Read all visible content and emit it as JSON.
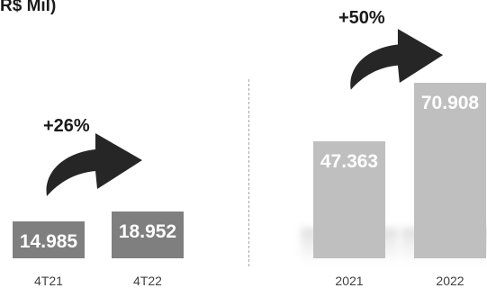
{
  "header": {
    "unit_label": "R$ Mil)"
  },
  "chart_data": [
    {
      "type": "bar",
      "categories": [
        "4T21",
        "4T22"
      ],
      "values": [
        14985,
        18952
      ],
      "value_labels": [
        "14.985",
        "18.952"
      ],
      "growth_label": "+26%",
      "colors": [
        "#7f7f7f",
        "#7f7f7f"
      ]
    },
    {
      "type": "bar",
      "categories": [
        "2021",
        "2022"
      ],
      "values": [
        47363,
        70908
      ],
      "value_labels": [
        "47.363",
        "70.908"
      ],
      "growth_label": "+50%",
      "colors": [
        "#bfbfbf",
        "#bfbfbf"
      ]
    }
  ],
  "colors": {
    "arrow": "#262626",
    "value_text": "#ffffff",
    "axis_text": "#404040"
  }
}
